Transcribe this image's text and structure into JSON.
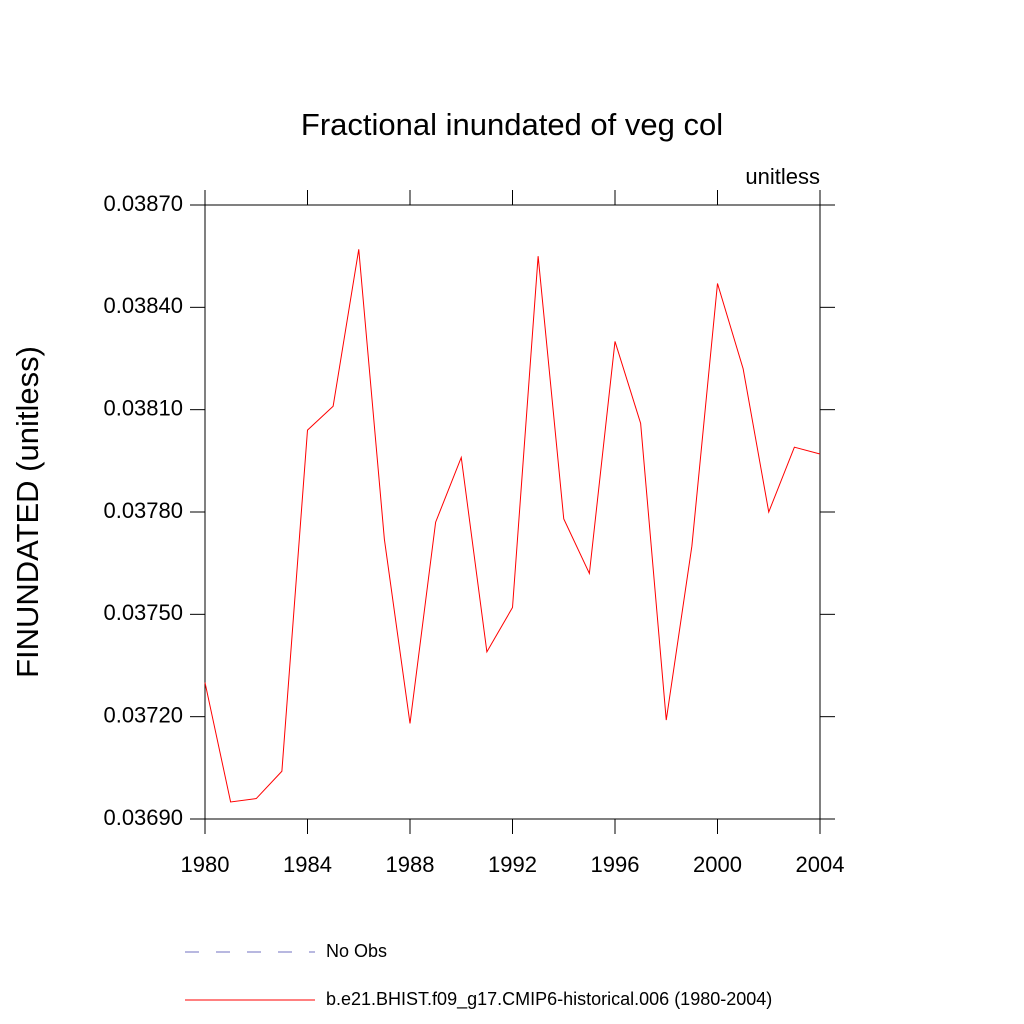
{
  "chart_data": {
    "type": "line",
    "title": "Fractional inundated of veg col",
    "subtitle": "unitless",
    "y_label": "FINUNDATED  (unitless)",
    "x": [
      1980,
      1981,
      1982,
      1983,
      1984,
      1985,
      1986,
      1987,
      1988,
      1989,
      1990,
      1991,
      1992,
      1993,
      1994,
      1995,
      1996,
      1997,
      1998,
      1999,
      2000,
      2001,
      2002,
      2003,
      2004
    ],
    "series": [
      {
        "name": "No Obs",
        "color": "#7070c0",
        "dash": true,
        "values": [
          null,
          null,
          null,
          null,
          null,
          null,
          null,
          null,
          null,
          null,
          null,
          null,
          null,
          null,
          null,
          null,
          null,
          null,
          null,
          null,
          null,
          null,
          null,
          null,
          null
        ]
      },
      {
        "name": "b.e21.BHIST.f09_g17.CMIP6-historical.006 (1980-2004)",
        "color": "#ff0000",
        "dash": false,
        "values": [
          0.0373,
          0.03695,
          0.03696,
          0.03704,
          0.03804,
          0.03811,
          0.03857,
          0.03772,
          0.03718,
          0.03777,
          0.03796,
          0.03739,
          0.03752,
          0.03855,
          0.03778,
          0.03762,
          0.0383,
          0.03806,
          0.03719,
          0.0377,
          0.03847,
          0.03822,
          0.0378,
          0.03799,
          0.03797
        ]
      }
    ],
    "xlim": [
      1980,
      2004
    ],
    "xticks": [
      1980,
      1984,
      1988,
      1992,
      1996,
      2000,
      2004
    ],
    "ylim": [
      0.0369,
      0.0387
    ],
    "yticks": [
      {
        "value": 0.0369,
        "label": "0.03690"
      },
      {
        "value": 0.0372,
        "label": "0.03720"
      },
      {
        "value": 0.0375,
        "label": "0.03750"
      },
      {
        "value": 0.0378,
        "label": "0.03780"
      },
      {
        "value": 0.0381,
        "label": "0.03810"
      },
      {
        "value": 0.0384,
        "label": "0.03840"
      },
      {
        "value": 0.0387,
        "label": "0.03870"
      }
    ],
    "grid": false
  }
}
